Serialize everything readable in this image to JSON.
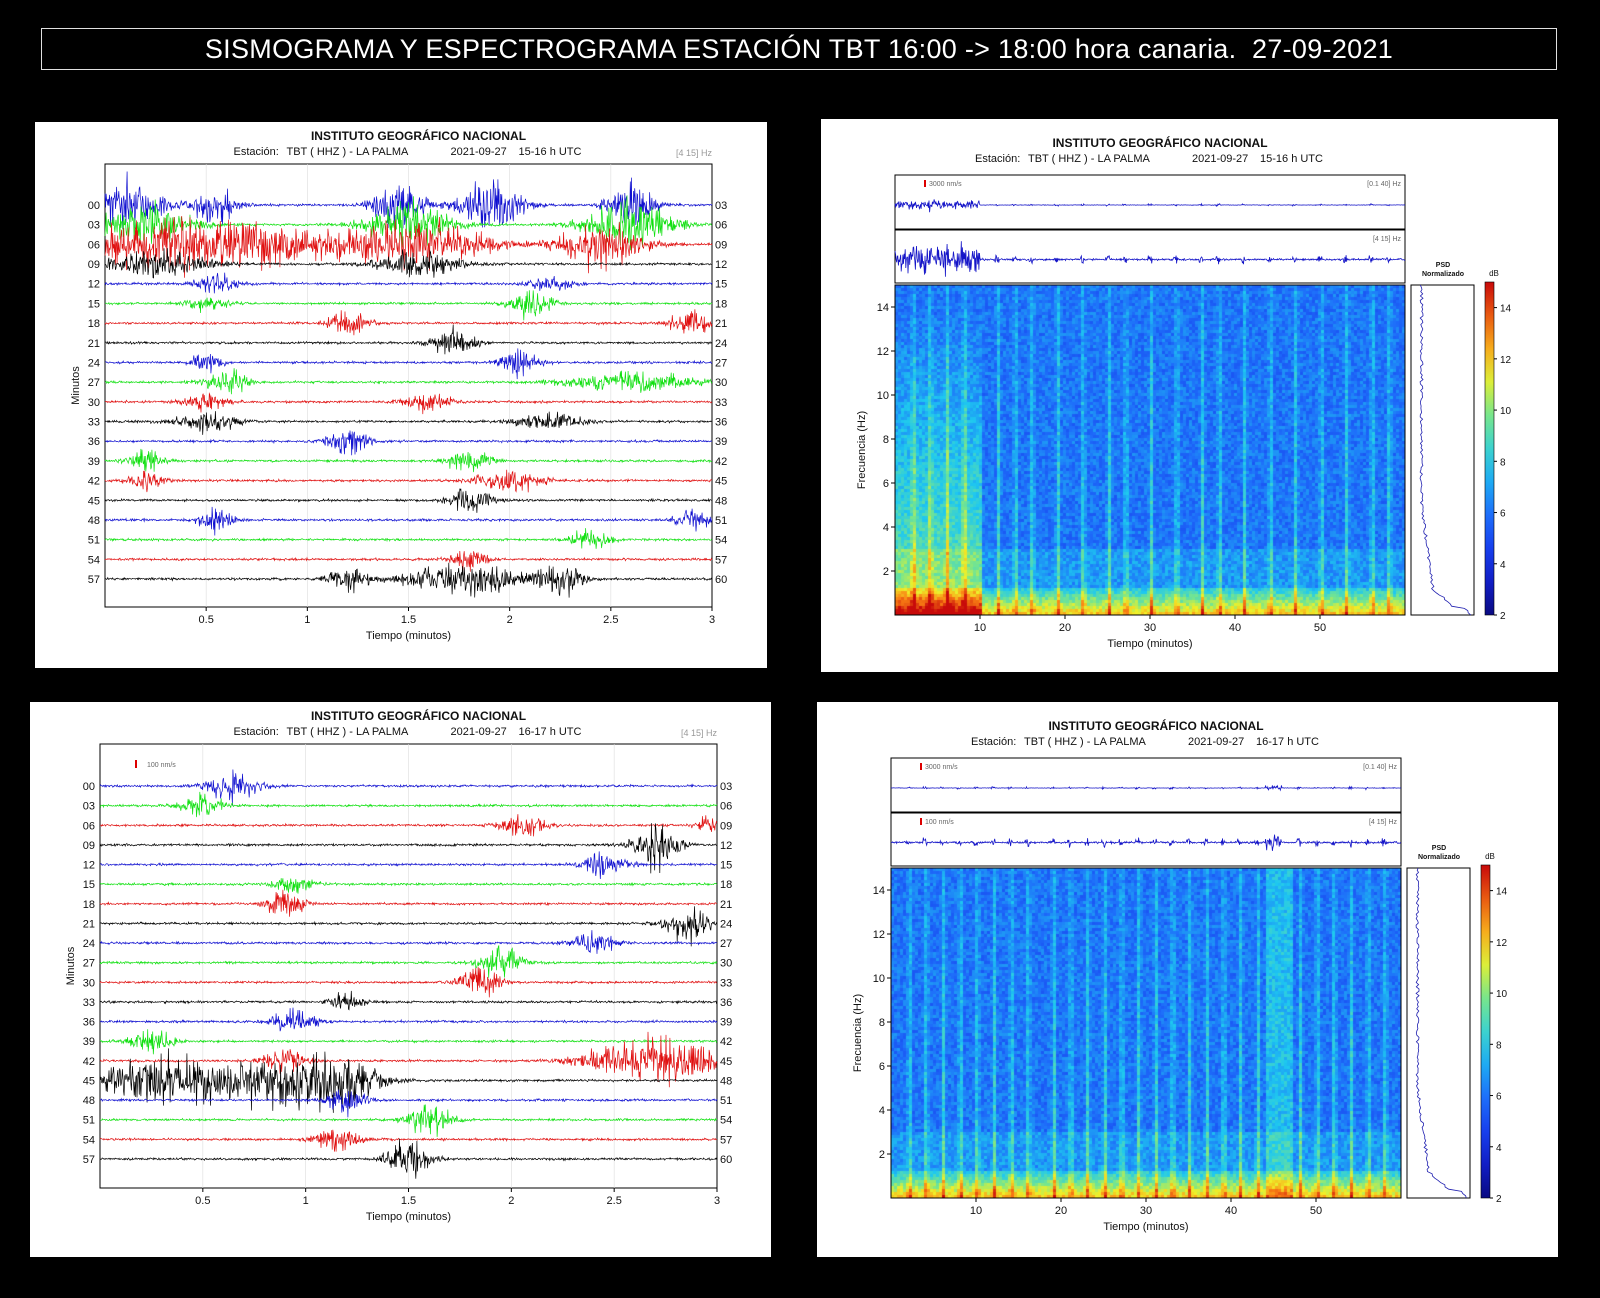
{
  "banner": "SISMOGRAMA Y ESPECTROGRAMA ESTACIÓN TBT 16:00 -> 18:00 hora canaria.  27-09-2021",
  "chart_data": [
    {
      "type": "seismogram",
      "title": "INSTITUTO GEOGRÁFICO NACIONAL",
      "station_label": "Estación:",
      "station": "TBT ( HHZ ) - LA PALMA",
      "date": "2021-09-27",
      "hour": "15-16 h UTC",
      "filter": "[4 15] Hz",
      "scale_label": "",
      "xlabel": "Tiempo (minutos)",
      "ylabel": "Minutos",
      "xlim": [
        0,
        3
      ],
      "xticks": [
        "0.5",
        "1",
        "1.5",
        "2",
        "2.5",
        "3"
      ],
      "xtick_values": [
        0.5,
        1,
        1.5,
        2,
        2.5,
        3
      ],
      "left_labels": [
        "00",
        "03",
        "06",
        "09",
        "12",
        "15",
        "18",
        "21",
        "24",
        "27",
        "30",
        "33",
        "36",
        "39",
        "42",
        "45",
        "48",
        "51",
        "54",
        "57"
      ],
      "right_labels": [
        "03",
        "06",
        "09",
        "12",
        "15",
        "18",
        "21",
        "24",
        "27",
        "30",
        "33",
        "36",
        "39",
        "42",
        "45",
        "48",
        "51",
        "54",
        "57",
        "60"
      ],
      "trace_colors": [
        "#1010d0",
        "#10e010",
        "#e01010",
        "#000000"
      ],
      "events": [
        [
          [
            0.1,
            0.18,
            1.0
          ],
          [
            0.55,
            0.1,
            0.8
          ],
          [
            1.45,
            0.12,
            1.0
          ],
          [
            1.9,
            0.15,
            1.0
          ],
          [
            2.6,
            0.1,
            1.0
          ]
        ],
        [
          [
            0.2,
            0.2,
            0.9
          ],
          [
            1.5,
            0.2,
            0.9
          ],
          [
            2.6,
            0.2,
            1.0
          ]
        ],
        [
          [
            0.25,
            0.3,
            1.0
          ],
          [
            0.75,
            0.3,
            1.0
          ],
          [
            1.5,
            0.35,
            1.0
          ],
          [
            2.45,
            0.2,
            0.9
          ]
        ],
        [
          [
            0.25,
            0.25,
            0.5
          ],
          [
            1.55,
            0.2,
            0.5
          ]
        ],
        [
          [
            0.55,
            0.1,
            0.4
          ],
          [
            2.2,
            0.1,
            0.3
          ]
        ],
        [
          [
            0.5,
            0.1,
            0.3
          ],
          [
            2.1,
            0.1,
            0.6
          ]
        ],
        [
          [
            1.2,
            0.1,
            0.5
          ],
          [
            2.9,
            0.1,
            0.5
          ]
        ],
        [
          [
            1.72,
            0.1,
            0.6
          ]
        ],
        [
          [
            0.5,
            0.08,
            0.4
          ],
          [
            2.05,
            0.1,
            0.5
          ]
        ],
        [
          [
            0.6,
            0.1,
            0.5
          ],
          [
            2.6,
            0.3,
            0.4
          ]
        ],
        [
          [
            0.5,
            0.1,
            0.4
          ],
          [
            1.6,
            0.1,
            0.4
          ]
        ],
        [
          [
            0.5,
            0.15,
            0.4
          ],
          [
            2.2,
            0.15,
            0.4
          ]
        ],
        [
          [
            1.2,
            0.1,
            0.5
          ]
        ],
        [
          [
            0.2,
            0.08,
            0.5
          ],
          [
            1.8,
            0.1,
            0.5
          ]
        ],
        [
          [
            0.2,
            0.08,
            0.4
          ],
          [
            2.0,
            0.15,
            0.5
          ]
        ],
        [
          [
            1.8,
            0.1,
            0.5
          ]
        ],
        [
          [
            0.55,
            0.08,
            0.5
          ],
          [
            2.9,
            0.08,
            0.5
          ]
        ],
        [
          [
            2.4,
            0.1,
            0.4
          ]
        ],
        [
          [
            1.8,
            0.08,
            0.5
          ]
        ],
        [
          [
            1.2,
            0.1,
            0.5
          ],
          [
            1.8,
            0.3,
            0.6
          ],
          [
            2.25,
            0.1,
            0.6
          ]
        ]
      ]
    },
    {
      "type": "spectrogram",
      "title": "INSTITUTO GEOGRÁFICO NACIONAL",
      "station_label": "Estación:",
      "station": "TBT ( HHZ ) - LA PALMA",
      "date": "2021-09-27",
      "hour": "15-16 h UTC",
      "trace1_scale": "3000 nm/s",
      "trace1_filter": "[0.1 40] Hz",
      "trace2_scale": "",
      "trace2_filter": "[4 15] Hz",
      "psd_label": [
        "PSD",
        "Normalizado"
      ],
      "colorbar_unit": "dB",
      "colorbar_ticks": [
        "2",
        "4",
        "6",
        "8",
        "10",
        "12",
        "14"
      ],
      "colorbar_range": [
        2,
        15
      ],
      "xlabel": "Tiempo (minutos)",
      "ylabel": "Frecuencia (Hz)",
      "xlim": [
        0,
        60
      ],
      "ylim": [
        0,
        15
      ],
      "xticks": [
        "10",
        "20",
        "30",
        "40",
        "50"
      ],
      "xtick_values": [
        10,
        20,
        30,
        40,
        50
      ],
      "yticks": [
        "2",
        "4",
        "6",
        "8",
        "10",
        "12",
        "14"
      ],
      "ytick_values": [
        2,
        4,
        6,
        8,
        10,
        12,
        14
      ],
      "high_energy_until_min": 10,
      "transient_minutes": [
        2,
        4,
        6,
        8,
        12,
        14,
        16,
        19,
        22,
        25,
        27,
        30,
        33,
        36,
        38,
        41,
        44,
        47,
        50,
        53,
        56,
        58
      ],
      "burst": []
    },
    {
      "type": "seismogram",
      "title": "INSTITUTO GEOGRÁFICO NACIONAL",
      "station_label": "Estación:",
      "station": "TBT ( HHZ ) - LA PALMA",
      "date": "2021-09-27",
      "hour": "16-17 h UTC",
      "filter": "[4 15] Hz",
      "scale_label": "100 nm/s",
      "xlabel": "Tiempo (minutos)",
      "ylabel": "Minutos",
      "xlim": [
        0,
        3
      ],
      "xticks": [
        "0.5",
        "1",
        "1.5",
        "2",
        "2.5",
        "3"
      ],
      "xtick_values": [
        0.5,
        1,
        1.5,
        2,
        2.5,
        3
      ],
      "left_labels": [
        "00",
        "03",
        "06",
        "09",
        "12",
        "15",
        "18",
        "21",
        "24",
        "27",
        "30",
        "33",
        "36",
        "39",
        "42",
        "45",
        "48",
        "51",
        "54",
        "57"
      ],
      "right_labels": [
        "03",
        "06",
        "09",
        "12",
        "15",
        "18",
        "21",
        "24",
        "27",
        "30",
        "33",
        "36",
        "39",
        "42",
        "45",
        "48",
        "51",
        "54",
        "57",
        "60"
      ],
      "trace_colors": [
        "#1010d0",
        "#10e010",
        "#e01010",
        "#000000"
      ],
      "events": [
        [
          [
            0.65,
            0.12,
            0.6
          ]
        ],
        [
          [
            0.5,
            0.1,
            0.5
          ]
        ],
        [
          [
            2.05,
            0.1,
            0.5
          ],
          [
            2.95,
            0.05,
            0.4
          ]
        ],
        [
          [
            2.7,
            0.1,
            1.0
          ]
        ],
        [
          [
            2.45,
            0.1,
            0.6
          ]
        ],
        [
          [
            0.95,
            0.1,
            0.4
          ]
        ],
        [
          [
            0.9,
            0.08,
            0.8
          ]
        ],
        [
          [
            2.85,
            0.1,
            0.8
          ]
        ],
        [
          [
            2.4,
            0.1,
            0.5
          ]
        ],
        [
          [
            1.95,
            0.1,
            0.7
          ]
        ],
        [
          [
            1.85,
            0.1,
            0.6
          ]
        ],
        [
          [
            1.2,
            0.08,
            0.4
          ]
        ],
        [
          [
            0.95,
            0.1,
            0.5
          ]
        ],
        [
          [
            0.25,
            0.1,
            0.5
          ]
        ],
        [
          [
            0.9,
            0.1,
            0.5
          ],
          [
            2.7,
            0.3,
            1.0
          ]
        ],
        [
          [
            0.3,
            0.3,
            1.0
          ],
          [
            0.9,
            0.3,
            1.0
          ],
          [
            1.2,
            0.15,
            0.8
          ]
        ],
        [
          [
            1.2,
            0.1,
            0.5
          ]
        ],
        [
          [
            1.6,
            0.1,
            0.7
          ]
        ],
        [
          [
            1.15,
            0.1,
            0.5
          ]
        ],
        [
          [
            1.5,
            0.1,
            0.8
          ]
        ]
      ]
    },
    {
      "type": "spectrogram",
      "title": "INSTITUTO GEOGRÁFICO NACIONAL",
      "station_label": "Estación:",
      "station": "TBT ( HHZ ) - LA PALMA",
      "date": "2021-09-27",
      "hour": "16-17 h UTC",
      "trace1_scale": "3000 nm/s",
      "trace1_filter": "[0.1 40] Hz",
      "trace2_scale": "100 nm/s",
      "trace2_filter": "[4 15] Hz",
      "psd_label": [
        "PSD",
        "Normalizado"
      ],
      "colorbar_unit": "dB",
      "colorbar_ticks": [
        "2",
        "4",
        "6",
        "8",
        "10",
        "12",
        "14"
      ],
      "colorbar_range": [
        2,
        15
      ],
      "xlabel": "Tiempo (minutos)",
      "ylabel": "Frecuencia (Hz)",
      "xlim": [
        0,
        60
      ],
      "ylim": [
        0,
        15
      ],
      "xticks": [
        "10",
        "20",
        "30",
        "40",
        "50"
      ],
      "xtick_values": [
        10,
        20,
        30,
        40,
        50
      ],
      "yticks": [
        "2",
        "4",
        "6",
        "8",
        "10",
        "12",
        "14"
      ],
      "ytick_values": [
        2,
        4,
        6,
        8,
        10,
        12,
        14
      ],
      "high_energy_until_min": 0,
      "transient_minutes": [
        2,
        4,
        6,
        8,
        10,
        12,
        14,
        16,
        19,
        21,
        23,
        25,
        27,
        29,
        31,
        33,
        35,
        37,
        39,
        41,
        43,
        48,
        50,
        52,
        54,
        56,
        58
      ],
      "burst": [
        44,
        47
      ]
    }
  ]
}
